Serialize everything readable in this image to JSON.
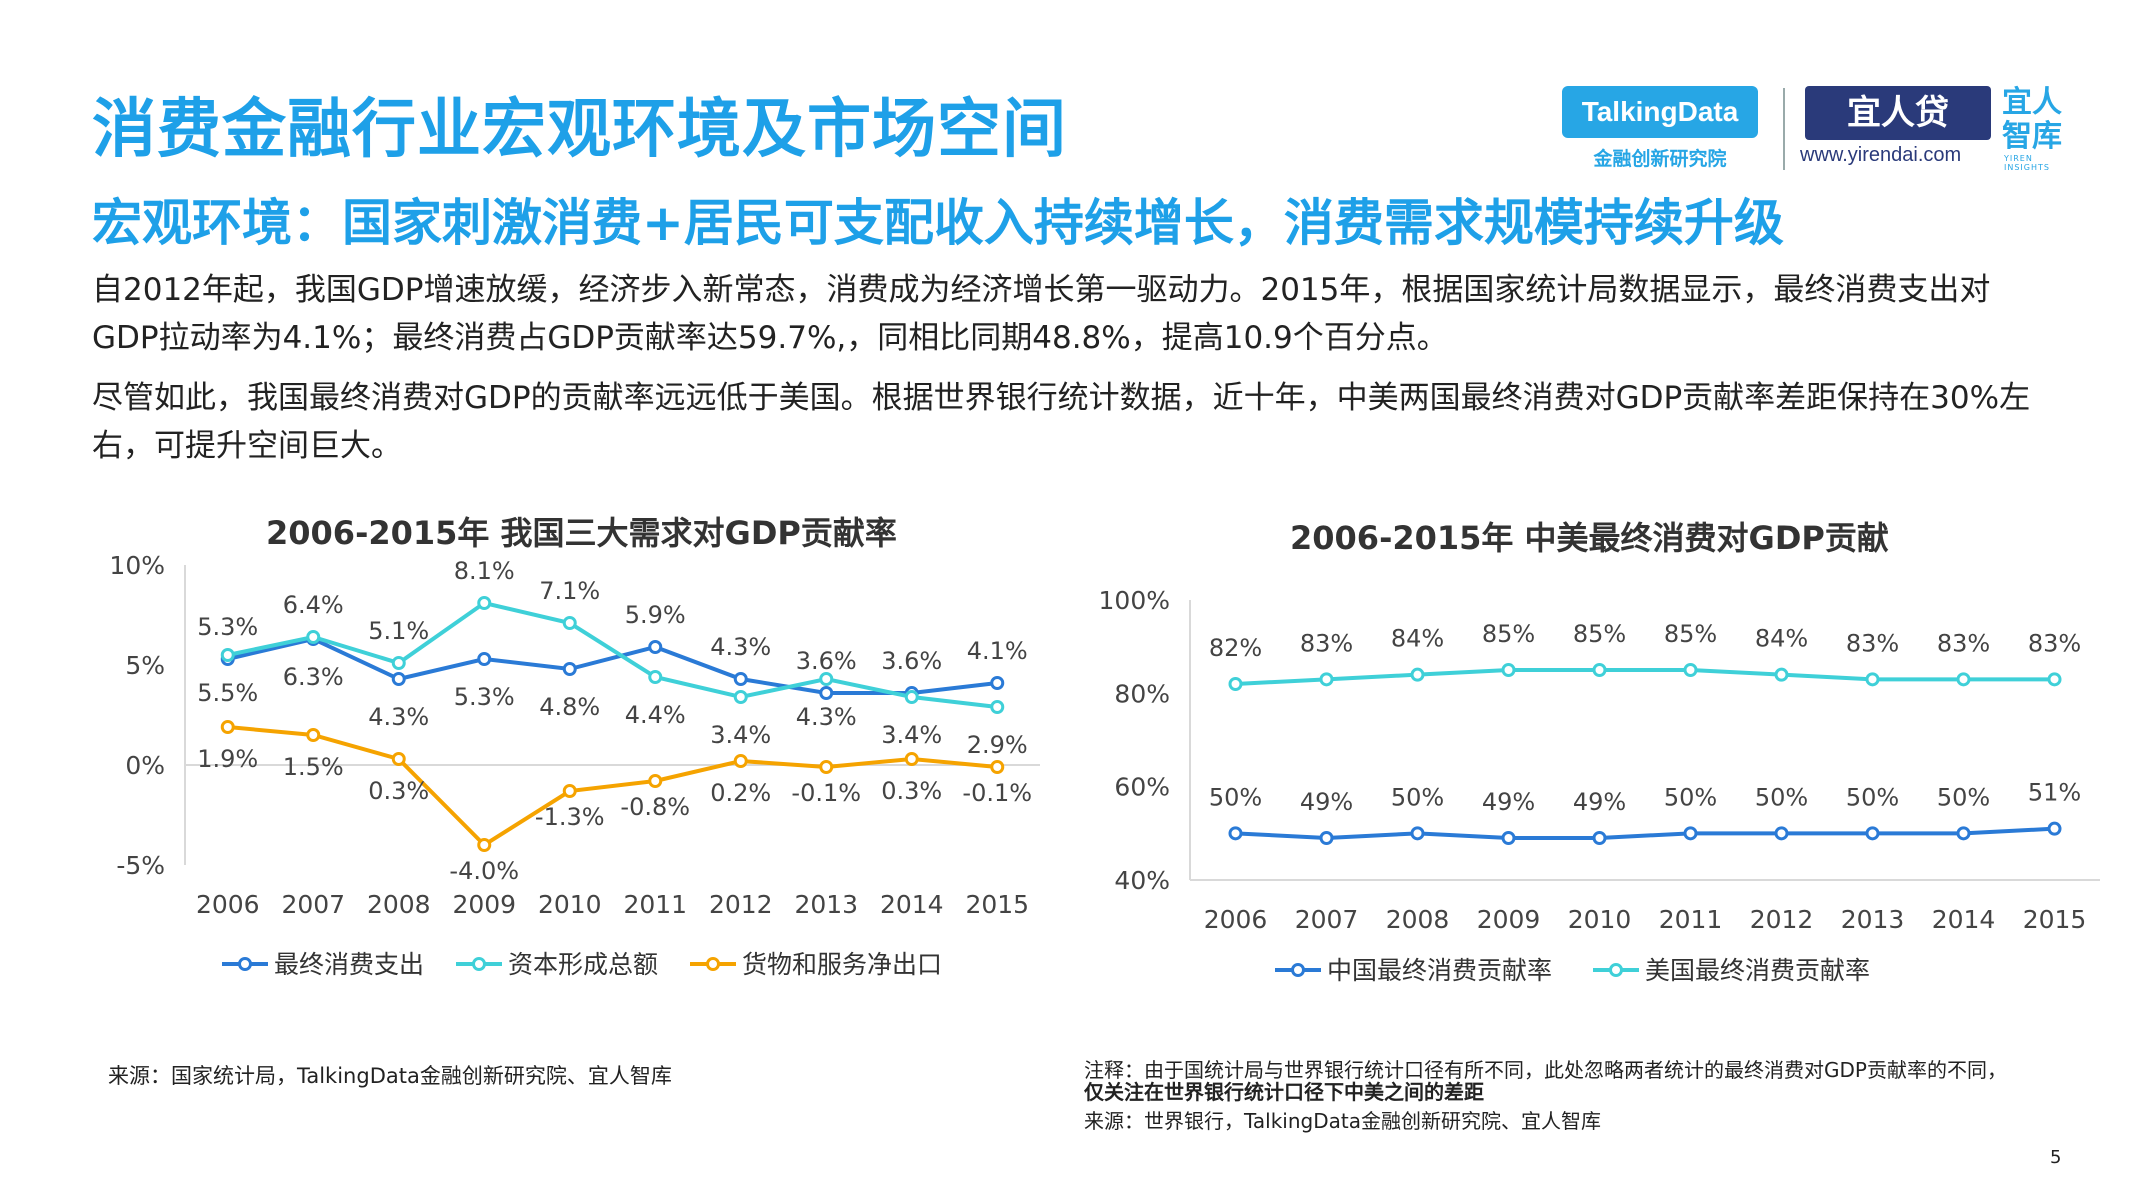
{
  "header": {
    "title": "消费金融行业宏观环境及市场空间",
    "subtitle": "宏观环境：国家刺激消费+居民可支配收入持续增长，消费需求规模持续升级"
  },
  "logos": {
    "talkingdata": "TalkingData",
    "talkingdata_sub": "金融创新研究院",
    "yirendai": "宜人贷",
    "yirendai_url": "www.yirendai.com",
    "zhiku": "宜人智库",
    "zhiku_sub": "YIREN INSIGHTS"
  },
  "paragraphs": {
    "p1": "自2012年起，我国GDP增速放缓，经济步入新常态，消费成为经济增长第一驱动力。2015年，根据国家统计局数据显示，最终消费支出对GDP拉动率为4.1%；最终消费占GDP贡献率达59.7%,，同相比同期48.8%，提高10.9个百分点。",
    "p2": "尽管如此，我国最终消费对GDP的贡献率远远低于美国。根据世界银行统计数据，近十年，中美两国最终消费对GDP贡献率差距保持在30%左右，可提升空间巨大。"
  },
  "chart_data": [
    {
      "type": "line",
      "title": "2006-2015年 我国三大需求对GDP贡献率",
      "categories": [
        "2006",
        "2007",
        "2008",
        "2009",
        "2010",
        "2011",
        "2012",
        "2013",
        "2014",
        "2015"
      ],
      "ylim": [
        -5,
        10
      ],
      "yticks": [
        -5,
        0,
        5,
        10
      ],
      "ytick_labels": [
        "-5%",
        "0%",
        "5%",
        "10%"
      ],
      "series": [
        {
          "name": "最终消费支出",
          "color": "#2a7ad6",
          "values": [
            5.3,
            6.3,
            4.3,
            5.3,
            4.8,
            5.9,
            4.3,
            3.6,
            3.6,
            4.1
          ],
          "labels": [
            "5.3%",
            "6.3%",
            "4.3%",
            "5.3%",
            "4.8%",
            "5.9%",
            "4.3%",
            "3.6%",
            "3.6%",
            "4.1%"
          ]
        },
        {
          "name": "资本形成总额",
          "color": "#3fd0d8",
          "values": [
            5.5,
            6.4,
            5.1,
            8.1,
            7.1,
            4.4,
            3.4,
            4.3,
            3.4,
            2.9
          ],
          "labels": [
            "5.5%",
            "6.4%",
            "5.1%",
            "8.1%",
            "7.1%",
            "4.4%",
            "3.4%",
            "4.3%",
            "3.4%",
            "2.9%"
          ]
        },
        {
          "name": "货物和服务净出口",
          "color": "#f5a300",
          "values": [
            1.9,
            1.5,
            0.3,
            -4.0,
            -1.3,
            -0.8,
            0.2,
            -0.1,
            0.3,
            -0.1
          ],
          "labels": [
            "1.9%",
            "1.5%",
            "0.3%",
            "-4.0%",
            "-1.3%",
            "-0.8%",
            "0.2%",
            "-0.1%",
            "0.3%",
            "-0.1%"
          ]
        }
      ],
      "legend": "bottom"
    },
    {
      "type": "line",
      "title": "2006-2015年 中美最终消费对GDP贡献",
      "categories": [
        "2006",
        "2007",
        "2008",
        "2009",
        "2010",
        "2011",
        "2012",
        "2013",
        "2014",
        "2015"
      ],
      "ylim": [
        40,
        100
      ],
      "yticks": [
        40,
        60,
        80,
        100
      ],
      "ytick_labels": [
        "40%",
        "60%",
        "80%",
        "100%"
      ],
      "series": [
        {
          "name": "中国最终消费贡献率",
          "color": "#2a7ad6",
          "values": [
            50,
            49,
            50,
            49,
            49,
            50,
            50,
            50,
            50,
            51
          ],
          "labels": [
            "50%",
            "49%",
            "50%",
            "49%",
            "49%",
            "50%",
            "50%",
            "50%",
            "50%",
            "51%"
          ]
        },
        {
          "name": "美国最终消费贡献率",
          "color": "#3fd0d8",
          "values": [
            82,
            83,
            84,
            85,
            85,
            85,
            84,
            83,
            83,
            83
          ],
          "labels": [
            "82%",
            "83%",
            "84%",
            "85%",
            "85%",
            "85%",
            "84%",
            "83%",
            "83%",
            "83%"
          ]
        }
      ],
      "legend": "bottom"
    }
  ],
  "footer": {
    "source_left": "来源：国家统计局，TalkingData金融创新研究院、宜人智库",
    "note_prefix": "注释：由于国统计局与世界银行统计口径有所不同，此处忽略两者统计的最终消费对GDP贡献率的不同，",
    "note_bold": "仅关注在世界银行统计口径下中美之间的差距",
    "source_right": "来源：世界银行，TalkingData金融创新研究院、宜人智库",
    "page_number": "5"
  }
}
